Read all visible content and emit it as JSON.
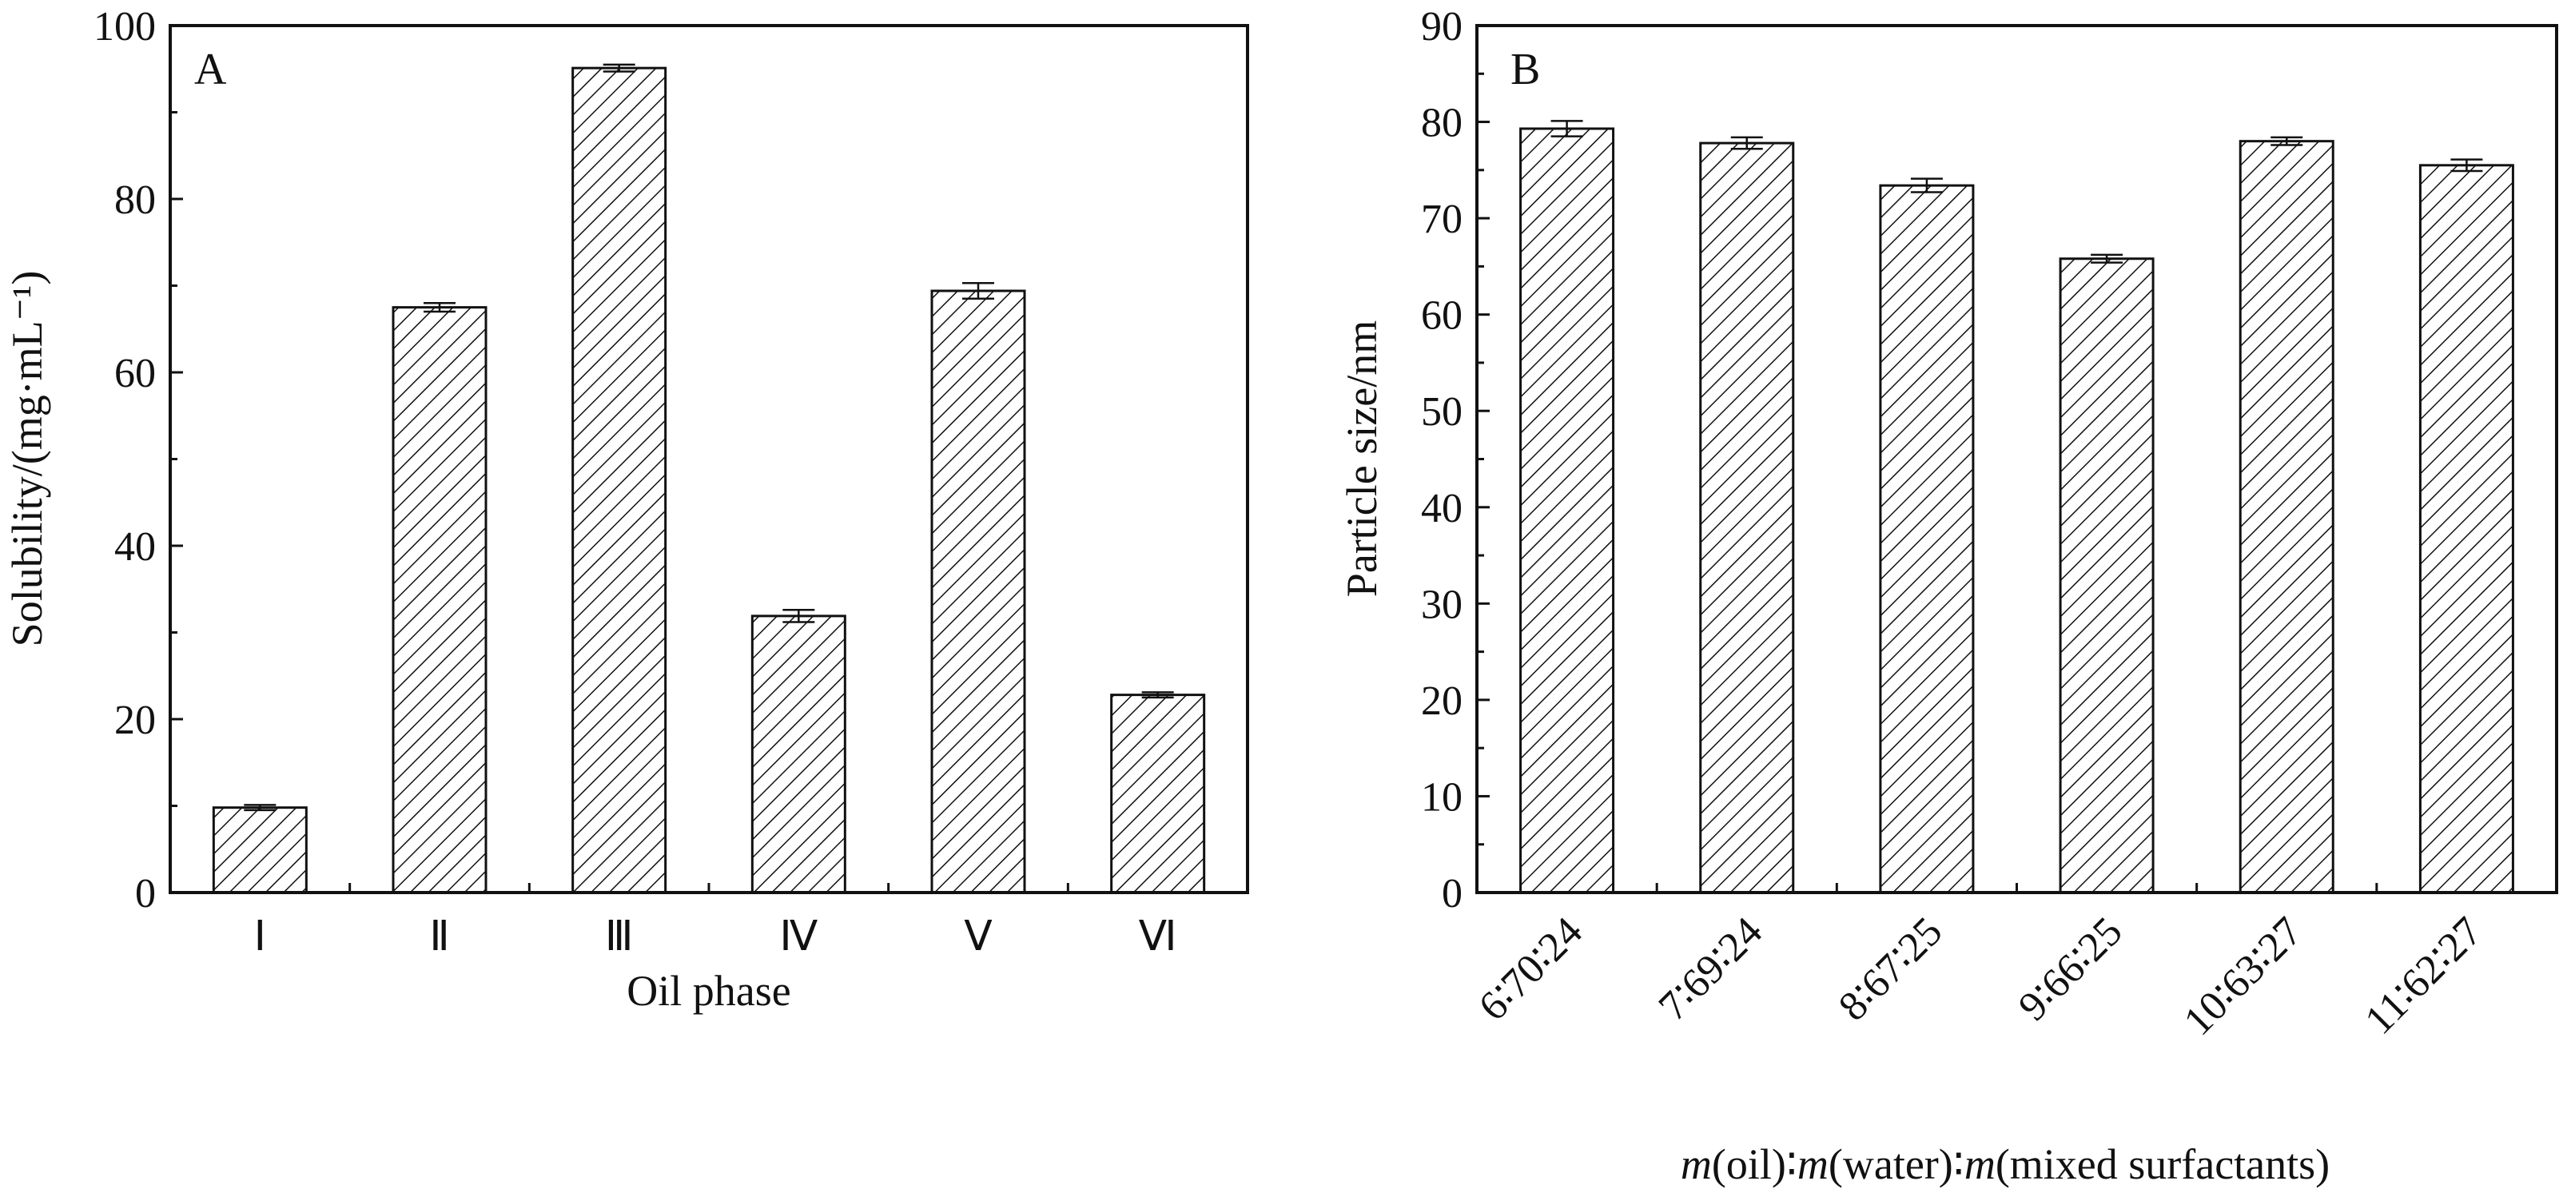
{
  "chart_data": [
    {
      "type": "bar",
      "panel_label": "A",
      "categories": [
        "Ⅰ",
        "Ⅱ",
        "Ⅲ",
        "Ⅳ",
        "Ⅴ",
        "Ⅵ"
      ],
      "values": [
        9.8,
        67.5,
        95.1,
        31.9,
        69.4,
        22.8
      ],
      "errors": [
        0.3,
        0.5,
        0.4,
        0.7,
        0.9,
        0.3
      ],
      "xlabel": "Oil phase",
      "ylabel": "Solubility/(mg·mL⁻¹)",
      "ylim": [
        0,
        100
      ],
      "yticks": [
        0,
        20,
        40,
        60,
        80,
        100
      ],
      "yticks_minor_step": 10,
      "fill": "hatched",
      "bar_color": "#111111"
    },
    {
      "type": "bar",
      "panel_label": "B",
      "categories": [
        "6∶70∶24",
        "7∶69∶24",
        "8∶67∶25",
        "9∶66∶25",
        "10∶63∶27",
        "11∶62∶27"
      ],
      "values": [
        79.3,
        77.8,
        73.4,
        65.8,
        78.0,
        75.5
      ],
      "errors": [
        0.8,
        0.6,
        0.7,
        0.4,
        0.4,
        0.6
      ],
      "xlabel": "m(oil)∶m(water)∶m(mixed surfactants)",
      "xlabel_parts": {
        "m1": "m",
        "p1": "(oil)∶",
        "m2": "m",
        "p2": "(water)∶",
        "m3": "m",
        "p3": "(mixed surfactants)"
      },
      "ylabel": "Particle size/nm",
      "ylim": [
        0,
        90
      ],
      "yticks": [
        0,
        10,
        20,
        30,
        40,
        50,
        60,
        70,
        80,
        90
      ],
      "yticks_minor_step": 5,
      "fill": "hatched",
      "bar_color": "#111111"
    }
  ]
}
